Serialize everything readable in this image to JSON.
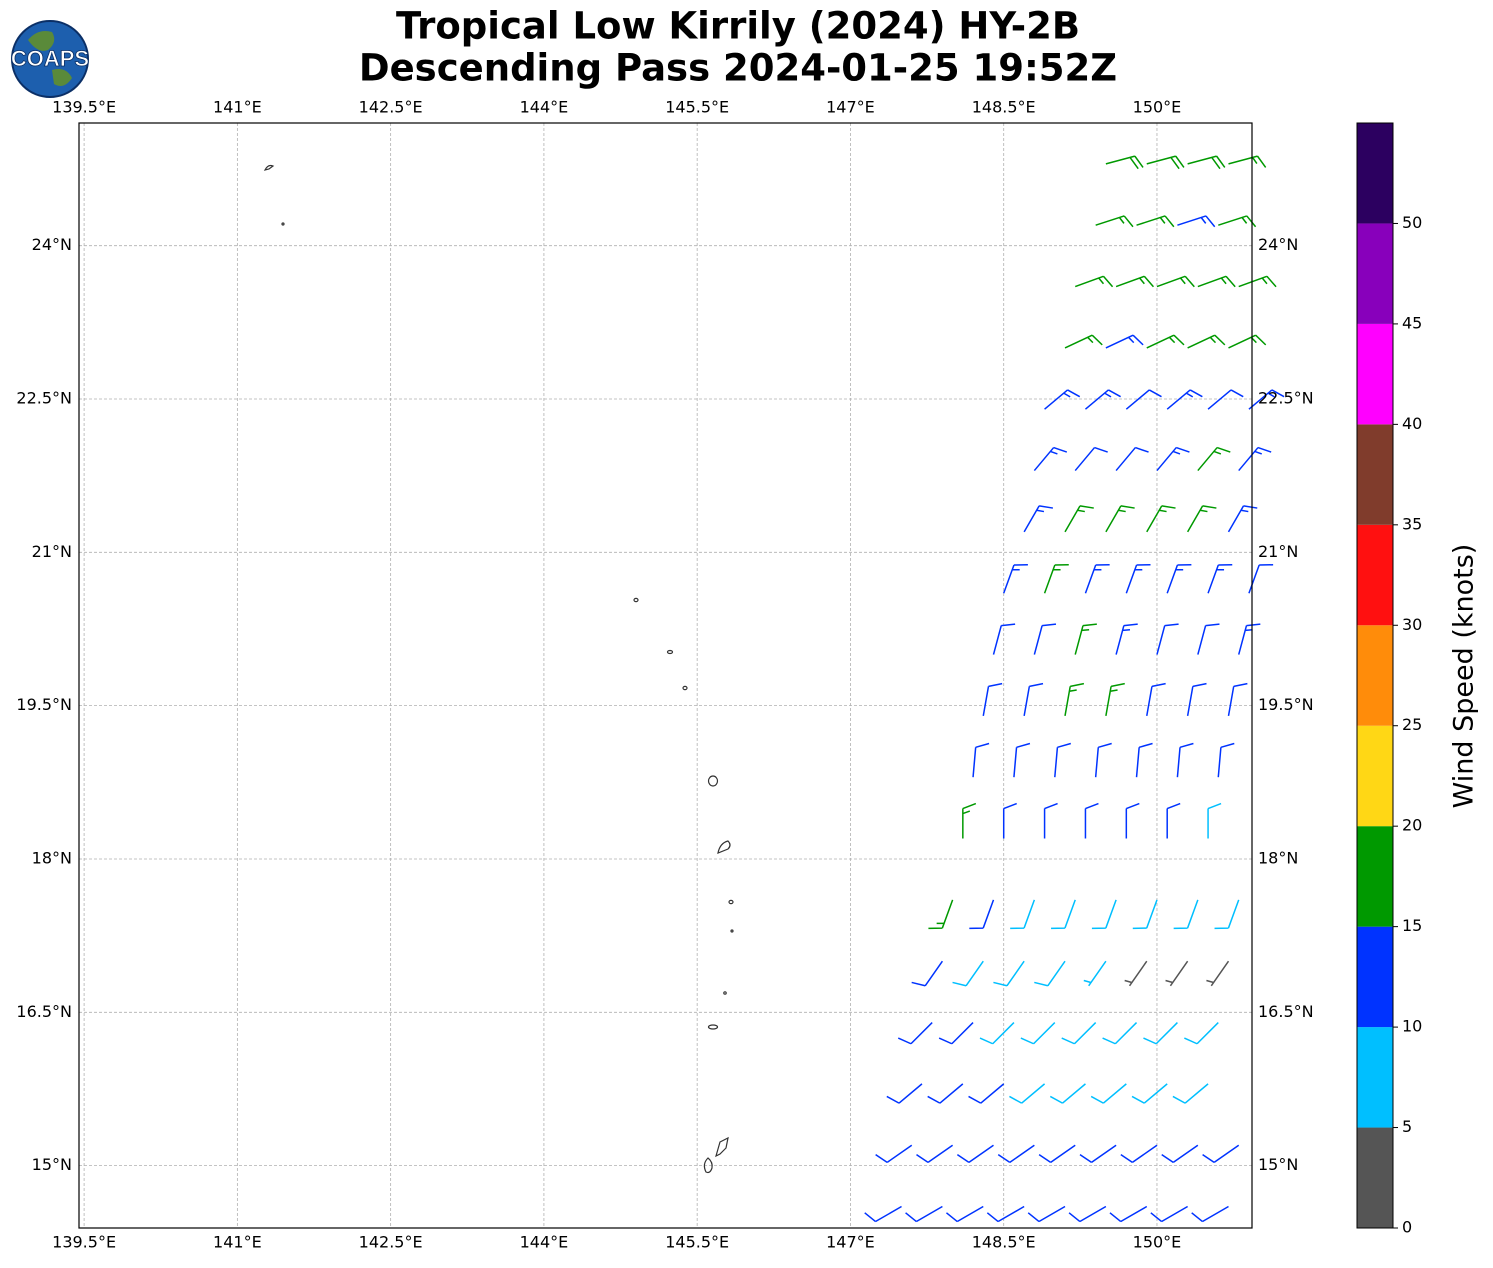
{
  "map_data": {
    "title": "Tropical Low Kirrily (2024) HY-2B",
    "subtitle": "Descending Pass 2024-01-25 19:52Z",
    "logo": "COAPS",
    "xlim": [
      139.45,
      150.93
    ],
    "ylim": [
      14.39,
      25.2
    ],
    "xticks": [
      {
        "value": 139.5,
        "label": "139.5°E"
      },
      {
        "value": 141,
        "label": "141°E"
      },
      {
        "value": 142.5,
        "label": "142.5°E"
      },
      {
        "value": 144,
        "label": "144°E"
      },
      {
        "value": 145.5,
        "label": "145.5°E"
      },
      {
        "value": 147,
        "label": "147°E"
      },
      {
        "value": 148.5,
        "label": "148.5°E"
      },
      {
        "value": 150,
        "label": "150°E"
      }
    ],
    "yticks": [
      {
        "value": 15,
        "label": "15°N"
      },
      {
        "value": 16.5,
        "label": "16.5°N"
      },
      {
        "value": 18,
        "label": "18°N"
      },
      {
        "value": 19.5,
        "label": "19.5°N"
      },
      {
        "value": 21,
        "label": "21°N"
      },
      {
        "value": 22.5,
        "label": "22.5°N"
      },
      {
        "value": 24,
        "label": "24°N"
      }
    ],
    "grid": true,
    "colorbar": {
      "label": "Wind Speed (knots)",
      "bounds": [
        0,
        5,
        10,
        15,
        20,
        25,
        30,
        35,
        40,
        45,
        50,
        55
      ],
      "colors": [
        "#555555",
        "#00bfff",
        "#0033ff",
        "#009900",
        "#ffd715",
        "#ff8c0a",
        "#ff1010",
        "#803c2c",
        "#ff00ff",
        "#8800bb",
        "#2c0060"
      ],
      "ticks": [
        0,
        5,
        10,
        15,
        20,
        25,
        30,
        35,
        40,
        45,
        50
      ]
    },
    "barbs": [
      [
        149.5,
        24.8,
        18,
        75
      ],
      [
        149.9,
        24.8,
        18,
        75
      ],
      [
        150.3,
        24.8,
        18,
        75
      ],
      [
        150.7,
        24.8,
        17,
        75
      ],
      [
        149.4,
        24.2,
        17,
        72
      ],
      [
        149.8,
        24.2,
        17,
        72
      ],
      [
        150.2,
        24.2,
        13,
        72
      ],
      [
        150.6,
        24.2,
        17,
        72
      ],
      [
        149.2,
        23.6,
        16,
        70
      ],
      [
        149.6,
        23.6,
        16,
        70
      ],
      [
        150.0,
        23.6,
        17,
        70
      ],
      [
        150.4,
        23.6,
        17,
        70
      ],
      [
        150.8,
        23.6,
        16,
        70
      ],
      [
        149.1,
        23.0,
        16,
        65
      ],
      [
        149.5,
        23.0,
        13,
        65
      ],
      [
        149.9,
        23.0,
        16,
        65
      ],
      [
        150.3,
        23.0,
        16,
        65
      ],
      [
        150.7,
        23.0,
        17,
        65
      ],
      [
        148.9,
        22.4,
        13,
        50
      ],
      [
        149.3,
        22.4,
        13,
        50
      ],
      [
        149.7,
        22.4,
        12,
        50
      ],
      [
        150.1,
        22.4,
        13,
        50
      ],
      [
        150.5,
        22.4,
        12,
        50
      ],
      [
        150.9,
        22.4,
        13,
        50
      ],
      [
        148.8,
        21.8,
        13,
        40
      ],
      [
        149.2,
        21.8,
        12,
        40
      ],
      [
        149.6,
        21.8,
        12,
        40
      ],
      [
        150.0,
        21.8,
        13,
        40
      ],
      [
        150.4,
        21.8,
        16,
        40
      ],
      [
        150.8,
        21.8,
        13,
        40
      ],
      [
        148.7,
        21.2,
        13,
        30
      ],
      [
        149.1,
        21.2,
        16,
        30
      ],
      [
        149.5,
        21.2,
        16,
        30
      ],
      [
        149.9,
        21.2,
        17,
        30
      ],
      [
        150.3,
        21.2,
        16,
        30
      ],
      [
        150.7,
        21.2,
        13,
        30
      ],
      [
        148.5,
        20.6,
        13,
        20
      ],
      [
        148.9,
        20.6,
        16,
        20
      ],
      [
        149.3,
        20.6,
        13,
        20
      ],
      [
        149.7,
        20.6,
        13,
        20
      ],
      [
        150.1,
        20.6,
        14,
        20
      ],
      [
        150.5,
        20.6,
        13,
        20
      ],
      [
        150.9,
        20.6,
        12,
        20
      ],
      [
        148.4,
        20.0,
        12,
        15
      ],
      [
        148.8,
        20.0,
        12,
        15
      ],
      [
        149.2,
        20.0,
        16,
        15
      ],
      [
        149.6,
        20.0,
        13,
        15
      ],
      [
        150.0,
        20.0,
        12,
        15
      ],
      [
        150.4,
        20.0,
        12,
        15
      ],
      [
        150.8,
        20.0,
        13,
        15
      ],
      [
        148.3,
        19.4,
        11,
        10
      ],
      [
        148.7,
        19.4,
        12,
        10
      ],
      [
        149.1,
        19.4,
        16,
        10
      ],
      [
        149.5,
        19.4,
        16,
        10
      ],
      [
        149.9,
        19.4,
        12,
        10
      ],
      [
        150.3,
        19.4,
        12,
        10
      ],
      [
        150.7,
        19.4,
        12,
        10
      ],
      [
        148.2,
        18.8,
        12,
        5
      ],
      [
        148.6,
        18.8,
        12,
        5
      ],
      [
        149.0,
        18.8,
        12,
        5
      ],
      [
        149.4,
        18.8,
        12,
        5
      ],
      [
        149.8,
        18.8,
        12,
        5
      ],
      [
        150.2,
        18.8,
        12,
        5
      ],
      [
        150.6,
        18.8,
        12,
        5
      ],
      [
        148.1,
        18.2,
        16,
        0
      ],
      [
        148.5,
        18.2,
        12,
        0
      ],
      [
        148.9,
        18.2,
        12,
        0
      ],
      [
        149.3,
        18.2,
        12,
        0
      ],
      [
        149.7,
        18.2,
        12,
        0
      ],
      [
        150.1,
        18.2,
        12,
        0
      ],
      [
        150.5,
        18.2,
        9,
        0
      ],
      [
        148.0,
        17.6,
        16,
        200
      ],
      [
        148.4,
        17.6,
        12,
        200
      ],
      [
        148.8,
        17.6,
        9,
        200
      ],
      [
        149.2,
        17.6,
        9,
        200
      ],
      [
        149.6,
        17.6,
        9,
        200
      ],
      [
        150.0,
        17.6,
        9,
        200
      ],
      [
        150.4,
        17.6,
        8,
        200
      ],
      [
        150.8,
        17.6,
        9,
        200
      ],
      [
        147.9,
        17.0,
        12,
        215
      ],
      [
        148.3,
        17.0,
        9,
        215
      ],
      [
        148.7,
        17.0,
        9,
        215
      ],
      [
        149.1,
        17.0,
        9,
        215
      ],
      [
        149.5,
        17.0,
        6,
        215
      ],
      [
        149.9,
        17.0,
        4,
        215
      ],
      [
        150.3,
        17.0,
        4,
        215
      ],
      [
        150.7,
        17.0,
        4,
        215
      ],
      [
        147.8,
        16.4,
        12,
        225
      ],
      [
        148.2,
        16.4,
        12,
        225
      ],
      [
        148.6,
        16.4,
        9,
        225
      ],
      [
        149.0,
        16.4,
        9,
        225
      ],
      [
        149.4,
        16.4,
        9,
        225
      ],
      [
        149.8,
        16.4,
        9,
        225
      ],
      [
        150.2,
        16.4,
        9,
        225
      ],
      [
        150.6,
        16.4,
        8,
        225
      ],
      [
        147.7,
        15.8,
        12,
        230
      ],
      [
        148.1,
        15.8,
        12,
        230
      ],
      [
        148.5,
        15.8,
        12,
        230
      ],
      [
        148.9,
        15.8,
        9,
        230
      ],
      [
        149.3,
        15.8,
        9,
        230
      ],
      [
        149.7,
        15.8,
        9,
        230
      ],
      [
        150.1,
        15.8,
        8,
        230
      ],
      [
        150.5,
        15.8,
        8,
        230
      ],
      [
        147.6,
        15.2,
        12,
        235
      ],
      [
        148.0,
        15.2,
        12,
        235
      ],
      [
        148.4,
        15.2,
        12,
        235
      ],
      [
        148.8,
        15.2,
        12,
        235
      ],
      [
        149.2,
        15.2,
        12,
        235
      ],
      [
        149.6,
        15.2,
        11,
        235
      ],
      [
        150.0,
        15.2,
        12,
        235
      ],
      [
        150.4,
        15.2,
        12,
        235
      ],
      [
        150.8,
        15.2,
        12,
        235
      ],
      [
        147.5,
        14.6,
        12,
        240
      ],
      [
        147.9,
        14.6,
        12,
        240
      ],
      [
        148.3,
        14.6,
        12,
        240
      ],
      [
        148.7,
        14.6,
        12,
        240
      ],
      [
        149.1,
        14.6,
        12,
        240
      ],
      [
        149.5,
        14.6,
        12,
        240
      ],
      [
        149.9,
        14.6,
        12,
        240
      ],
      [
        150.3,
        14.6,
        12,
        240
      ],
      [
        150.7,
        14.6,
        12,
        240
      ]
    ]
  }
}
